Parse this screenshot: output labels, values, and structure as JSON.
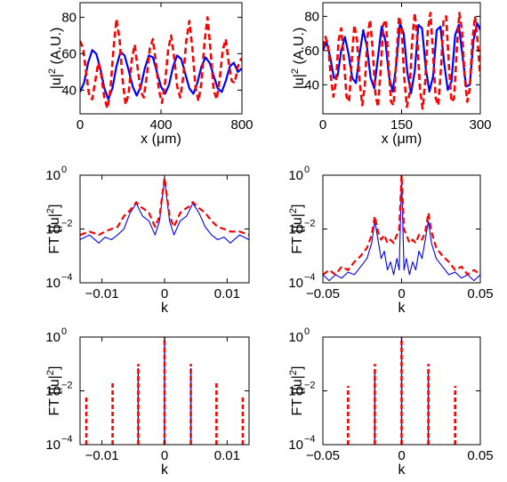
{
  "chart_data": [
    {
      "type": "line",
      "ylabel_main": "|u|",
      "ylabel_sup": "2",
      "ylabel_tail": " (A.U.)",
      "xlabel": "x (μm)",
      "xlim": [
        0,
        800
      ],
      "ylim": [
        27,
        88
      ],
      "yscale": "linear",
      "xticks": [
        0,
        400,
        800
      ],
      "xticklabels": [
        "0",
        "400",
        "800"
      ],
      "yticks": [
        40,
        60,
        80
      ],
      "yticklabels": [
        "40",
        "60",
        "80"
      ],
      "series": [
        {
          "color": "#0000ff",
          "style": "solid",
          "width": 2.2,
          "x": [
            0,
            20,
            40,
            60,
            80,
            100,
            120,
            140,
            160,
            180,
            200,
            220,
            240,
            260,
            280,
            300,
            320,
            340,
            360,
            380,
            400,
            420,
            440,
            460,
            480,
            500,
            520,
            540,
            560,
            580,
            600,
            620,
            640,
            660,
            680,
            700,
            720,
            740,
            760,
            780,
            800
          ],
          "y": [
            39,
            44,
            55,
            62,
            60,
            52,
            41,
            35,
            41,
            53,
            61,
            59,
            51,
            42,
            37,
            42,
            52,
            59,
            58,
            50,
            42,
            38,
            43,
            53,
            59,
            57,
            49,
            41,
            38,
            44,
            53,
            58,
            55,
            48,
            41,
            39,
            45,
            53,
            55,
            50,
            52
          ]
        },
        {
          "color": "#ff0000",
          "style": "dashed",
          "width": 2.6,
          "x": [
            0,
            15,
            30,
            45,
            60,
            75,
            90,
            105,
            120,
            135,
            150,
            165,
            180,
            195,
            210,
            225,
            240,
            255,
            270,
            285,
            300,
            315,
            330,
            345,
            360,
            375,
            390,
            405,
            420,
            435,
            450,
            465,
            480,
            495,
            510,
            525,
            540,
            555,
            570,
            585,
            600,
            615,
            630,
            645,
            660,
            675,
            690,
            705,
            720,
            735,
            750,
            765,
            780,
            795,
            800
          ],
          "y": [
            67,
            63,
            50,
            37,
            35,
            45,
            55,
            48,
            36,
            30,
            40,
            62,
            79,
            68,
            46,
            32,
            38,
            56,
            65,
            52,
            39,
            36,
            48,
            63,
            68,
            55,
            40,
            33,
            44,
            62,
            70,
            58,
            42,
            36,
            47,
            67,
            78,
            63,
            42,
            34,
            44,
            66,
            80,
            62,
            40,
            35,
            46,
            62,
            68,
            55,
            45,
            44,
            53,
            57,
            56
          ]
        }
      ]
    },
    {
      "type": "line",
      "ylabel_main": "|u|",
      "ylabel_sup": "2",
      "ylabel_tail": " (A.U.)",
      "xlabel": "x (μm)",
      "xlim": [
        0,
        300
      ],
      "ylim": [
        23,
        88
      ],
      "yscale": "linear",
      "xticks": [
        0,
        150,
        300
      ],
      "xticklabels": [
        "0",
        "150",
        "300"
      ],
      "yticks": [
        40,
        60,
        80
      ],
      "yticklabels": [
        "40",
        "60",
        "80"
      ],
      "series": [
        {
          "color": "#0000ff",
          "style": "solid",
          "width": 2.2,
          "x": [
            0,
            7,
            14,
            21,
            28,
            35,
            42,
            49,
            56,
            63,
            70,
            77,
            84,
            91,
            98,
            105,
            112,
            119,
            126,
            133,
            140,
            147,
            154,
            161,
            168,
            175,
            182,
            189,
            196,
            203,
            210,
            217,
            224,
            231,
            238,
            245,
            252,
            259,
            266,
            273,
            280,
            287,
            294,
            300
          ],
          "y": [
            60,
            65,
            56,
            44,
            45,
            60,
            68,
            58,
            44,
            41,
            58,
            72,
            62,
            44,
            38,
            56,
            74,
            66,
            45,
            36,
            52,
            76,
            70,
            47,
            35,
            48,
            75,
            73,
            50,
            36,
            45,
            72,
            74,
            53,
            37,
            42,
            69,
            75,
            57,
            39,
            40,
            66,
            76,
            72
          ]
        },
        {
          "color": "#ff0000",
          "style": "dashed",
          "width": 2.6,
          "x": [
            0,
            5,
            10,
            15,
            20,
            25,
            30,
            35,
            40,
            45,
            50,
            55,
            60,
            65,
            70,
            75,
            80,
            85,
            90,
            95,
            100,
            105,
            110,
            115,
            120,
            125,
            130,
            135,
            140,
            145,
            150,
            155,
            160,
            165,
            170,
            175,
            180,
            185,
            190,
            195,
            200,
            205,
            210,
            215,
            220,
            225,
            230,
            235,
            240,
            245,
            250,
            255,
            260,
            265,
            270,
            275,
            280,
            285,
            290,
            295,
            300
          ],
          "y": [
            62,
            68,
            63,
            45,
            33,
            42,
            66,
            73,
            55,
            33,
            30,
            54,
            75,
            66,
            42,
            28,
            40,
            68,
            78,
            60,
            35,
            27,
            48,
            75,
            78,
            52,
            30,
            28,
            55,
            80,
            73,
            45,
            27,
            35,
            65,
            82,
            66,
            38,
            26,
            42,
            72,
            82,
            58,
            32,
            28,
            50,
            78,
            80,
            52,
            30,
            32,
            60,
            82,
            72,
            45,
            30,
            38,
            66,
            80,
            65,
            45
          ]
        }
      ]
    },
    {
      "type": "line",
      "ylabel_main": "FT [|u|",
      "ylabel_sup": "2",
      "ylabel_tail": "]",
      "xlabel": "k",
      "xlim": [
        -0.0135,
        0.0135
      ],
      "ylim": [
        0.0001,
        1
      ],
      "yscale": "log",
      "xticks": [
        -0.01,
        0,
        0.01
      ],
      "xticklabels": [
        "-0.01",
        "0",
        "0.01"
      ],
      "yticks": [
        0.0001,
        0.01,
        1
      ],
      "yticklabels": [
        [
          "10",
          "-4"
        ],
        [
          "10",
          "-2"
        ],
        [
          "10",
          "0"
        ]
      ],
      "series": [
        {
          "color": "#0000ff",
          "style": "solid",
          "width": 1.1,
          "x": [
            -0.0135,
            -0.012,
            -0.0105,
            -0.0095,
            -0.0085,
            -0.0075,
            -0.0065,
            -0.0055,
            -0.0045,
            -0.004,
            -0.0035,
            -0.0025,
            -0.0015,
            -0.0008,
            0,
            0.0008,
            0.0015,
            0.0025,
            0.0035,
            0.004,
            0.0045,
            0.0055,
            0.0065,
            0.0075,
            0.0085,
            0.0095,
            0.0105,
            0.012,
            0.0135
          ],
          "y": [
            0.004,
            0.006,
            0.003,
            0.005,
            0.004,
            0.006,
            0.01,
            0.04,
            0.09,
            0.05,
            0.03,
            0.02,
            0.006,
            0.02,
            0.7,
            0.02,
            0.006,
            0.02,
            0.03,
            0.05,
            0.09,
            0.04,
            0.012,
            0.006,
            0.004,
            0.005,
            0.003,
            0.006,
            0.004
          ]
        },
        {
          "color": "#ff0000",
          "style": "dashed",
          "width": 2.2,
          "x": [
            -0.0135,
            -0.012,
            -0.0105,
            -0.0095,
            -0.0085,
            -0.0075,
            -0.0065,
            -0.0055,
            -0.0045,
            -0.004,
            -0.0035,
            -0.0025,
            -0.0015,
            -0.0008,
            0,
            0.0008,
            0.0015,
            0.0025,
            0.0035,
            0.004,
            0.0045,
            0.0055,
            0.0065,
            0.0075,
            0.0085,
            0.0095,
            0.0105,
            0.012,
            0.0135
          ],
          "y": [
            0.006,
            0.008,
            0.006,
            0.008,
            0.01,
            0.012,
            0.03,
            0.05,
            0.1,
            0.07,
            0.06,
            0.04,
            0.012,
            0.03,
            0.8,
            0.03,
            0.012,
            0.04,
            0.06,
            0.07,
            0.1,
            0.06,
            0.04,
            0.02,
            0.012,
            0.01,
            0.008,
            0.008,
            0.006
          ]
        }
      ]
    },
    {
      "type": "line",
      "ylabel_main": "FT [|u|",
      "ylabel_sup": "2",
      "ylabel_tail": "]",
      "xlabel": "k",
      "xlim": [
        -0.05,
        0.05
      ],
      "ylim": [
        0.0001,
        1
      ],
      "yscale": "log",
      "xticks": [
        -0.05,
        0,
        0.05
      ],
      "xticklabels": [
        "-0.05",
        "0",
        "0.05"
      ],
      "yticks": [
        0.0001,
        0.01,
        1
      ],
      "yticklabels": [
        [
          "10",
          "-4"
        ],
        [
          "10",
          "-2"
        ],
        [
          "10",
          "0"
        ]
      ],
      "series": [
        {
          "color": "#0000ff",
          "style": "solid",
          "width": 1.1,
          "x": [
            -0.05,
            -0.046,
            -0.042,
            -0.038,
            -0.034,
            -0.03,
            -0.026,
            -0.022,
            -0.019,
            -0.017,
            -0.015,
            -0.013,
            -0.011,
            -0.009,
            -0.007,
            -0.005,
            -0.003,
            -0.0015,
            0,
            0.0015,
            0.003,
            0.005,
            0.007,
            0.009,
            0.011,
            0.013,
            0.015,
            0.017,
            0.019,
            0.022,
            0.026,
            0.03,
            0.034,
            0.038,
            0.042,
            0.046,
            0.05
          ],
          "y": [
            0.0002,
            0.00012,
            0.0002,
            0.00015,
            0.00025,
            0.0002,
            0.0004,
            0.0008,
            0.003,
            0.02,
            0.004,
            0.0008,
            0.0015,
            0.0003,
            0.0006,
            0.0002,
            0.0008,
            0.0003,
            0.9,
            0.0003,
            0.0008,
            0.0002,
            0.0006,
            0.0003,
            0.0015,
            0.0008,
            0.004,
            0.02,
            0.003,
            0.0008,
            0.0004,
            0.0002,
            0.00025,
            0.00015,
            0.0002,
            0.00012,
            0.0002
          ]
        },
        {
          "color": "#ff0000",
          "style": "dashed",
          "width": 2.2,
          "x": [
            -0.05,
            -0.046,
            -0.042,
            -0.038,
            -0.034,
            -0.03,
            -0.026,
            -0.022,
            -0.019,
            -0.017,
            -0.015,
            -0.013,
            -0.011,
            -0.009,
            -0.007,
            -0.005,
            -0.003,
            -0.0015,
            0,
            0.0015,
            0.003,
            0.005,
            0.007,
            0.009,
            0.011,
            0.013,
            0.015,
            0.017,
            0.019,
            0.022,
            0.026,
            0.03,
            0.034,
            0.038,
            0.042,
            0.046,
            0.05
          ],
          "y": [
            0.0002,
            0.0003,
            0.0002,
            0.0004,
            0.0003,
            0.0006,
            0.001,
            0.002,
            0.006,
            0.03,
            0.008,
            0.004,
            0.006,
            0.003,
            0.004,
            0.003,
            0.006,
            0.01,
            1,
            0.01,
            0.006,
            0.003,
            0.004,
            0.003,
            0.006,
            0.004,
            0.008,
            0.04,
            0.008,
            0.002,
            0.001,
            0.0006,
            0.0003,
            0.0004,
            0.0002,
            0.0003,
            0.0002
          ]
        }
      ]
    },
    {
      "type": "line",
      "ylabel_main": "FT [|u|",
      "ylabel_sup": "2",
      "ylabel_tail": "]",
      "xlabel": "k",
      "xlim": [
        -0.0135,
        0.0135
      ],
      "ylim": [
        0.0001,
        1
      ],
      "yscale": "log",
      "xticks": [
        -0.01,
        0,
        0.01
      ],
      "xticklabels": [
        "-0.01",
        "0",
        "0.01"
      ],
      "yticks": [
        0.0001,
        0.01,
        1
      ],
      "yticklabels": [
        [
          "10",
          "-4"
        ],
        [
          "10",
          "-2"
        ],
        [
          "10",
          "0"
        ]
      ],
      "spikes": [
        {
          "color": "#0000ff",
          "style": "solid",
          "width": 1.4,
          "k": [
            -0.0042,
            0,
            0.0042
          ],
          "peak": [
            0.07,
            0.9,
            0.07
          ]
        },
        {
          "color": "#ff0000",
          "style": "dashed",
          "width": 2.6,
          "k": [
            -0.0125,
            -0.0083,
            -0.0042,
            0,
            0.0042,
            0.0083,
            0.0125
          ],
          "peak": [
            0.006,
            0.02,
            0.1,
            1,
            0.1,
            0.02,
            0.006
          ]
        }
      ]
    },
    {
      "type": "line",
      "ylabel_main": "FT [|u|",
      "ylabel_sup": "2",
      "ylabel_tail": "]",
      "xlabel": "k",
      "xlim": [
        -0.05,
        0.05
      ],
      "ylim": [
        0.0001,
        1
      ],
      "yscale": "log",
      "xticks": [
        -0.05,
        0,
        0.05
      ],
      "xticklabels": [
        "-0.05",
        "0",
        "0.05"
      ],
      "yticks": [
        0.0001,
        0.01,
        1
      ],
      "yticklabels": [
        [
          "10",
          "-4"
        ],
        [
          "10",
          "-2"
        ],
        [
          "10",
          "0"
        ]
      ],
      "spikes": [
        {
          "color": "#0000ff",
          "style": "solid",
          "width": 1.4,
          "k": [
            -0.017,
            0,
            0.017
          ],
          "peak": [
            0.05,
            0.9,
            0.05
          ]
        },
        {
          "color": "#ff0000",
          "style": "dashed",
          "width": 2.6,
          "k": [
            -0.034,
            -0.017,
            0,
            0.017,
            0.034
          ],
          "peak": [
            0.015,
            0.1,
            1,
            0.1,
            0.015
          ]
        }
      ]
    }
  ]
}
